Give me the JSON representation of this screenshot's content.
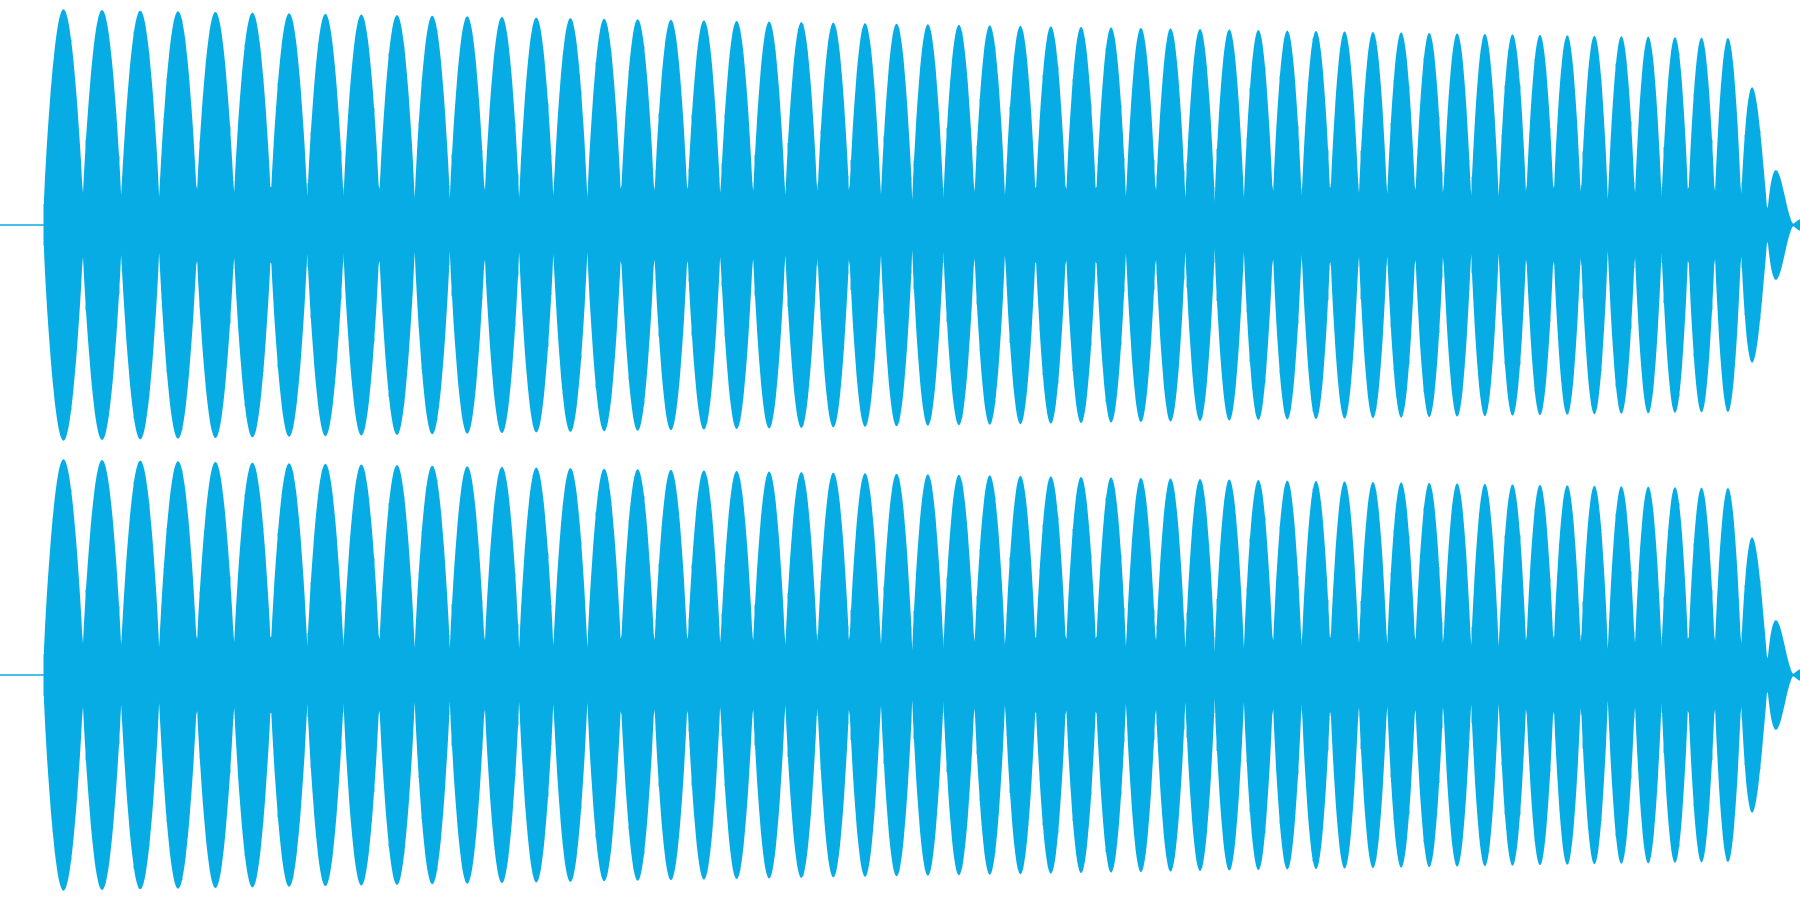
{
  "chart_data": {
    "type": "area",
    "title": "",
    "xlabel": "",
    "ylabel": "",
    "grid": false,
    "legend": "none",
    "color": "#06ace3",
    "channels": [
      {
        "channel": "left"
      },
      {
        "channel": "right"
      }
    ],
    "ylim": [
      -1,
      1
    ],
    "xlim": [
      0,
      1
    ],
    "envelope": {
      "x": [
        0.0,
        0.0246,
        0.0451,
        0.0655,
        0.086,
        0.1065,
        0.127,
        0.1475,
        0.168,
        0.1885,
        0.209,
        0.2295,
        0.25,
        0.2705,
        0.291,
        0.3115,
        0.332,
        0.3525,
        0.373,
        0.3934,
        0.4139,
        0.4344,
        0.4549,
        0.4754,
        0.4959,
        0.5164,
        0.5369,
        0.5574,
        0.5779,
        0.5984,
        0.6189,
        0.6393,
        0.6598,
        0.6803,
        0.7008,
        0.7213,
        0.7418,
        0.7623,
        0.7828,
        0.8033,
        0.8238,
        0.8443,
        0.8648,
        0.8852,
        0.9057,
        0.9262,
        0.9467,
        0.9672,
        0.9877,
        1.0
      ],
      "peak": [
        0.12,
        0.99,
        0.45,
        0.99,
        0.42,
        0.99,
        0.4,
        0.99,
        0.38,
        0.99,
        0.36,
        0.99,
        0.35,
        0.99,
        0.33,
        0.99,
        0.31,
        0.98,
        0.3,
        0.97,
        0.28,
        0.97,
        0.25,
        0.96,
        0.22,
        0.95,
        0.2,
        0.94,
        0.18,
        0.93,
        0.16,
        0.92,
        0.14,
        0.91,
        0.12,
        0.9,
        0.1,
        0.89,
        0.08,
        0.88,
        0.06,
        0.87,
        0.05,
        0.86,
        0.04,
        0.85,
        0.03,
        0.6,
        0.25,
        0.08
      ]
    },
    "bursts": {
      "count": 45,
      "tail_decay": true
    }
  }
}
